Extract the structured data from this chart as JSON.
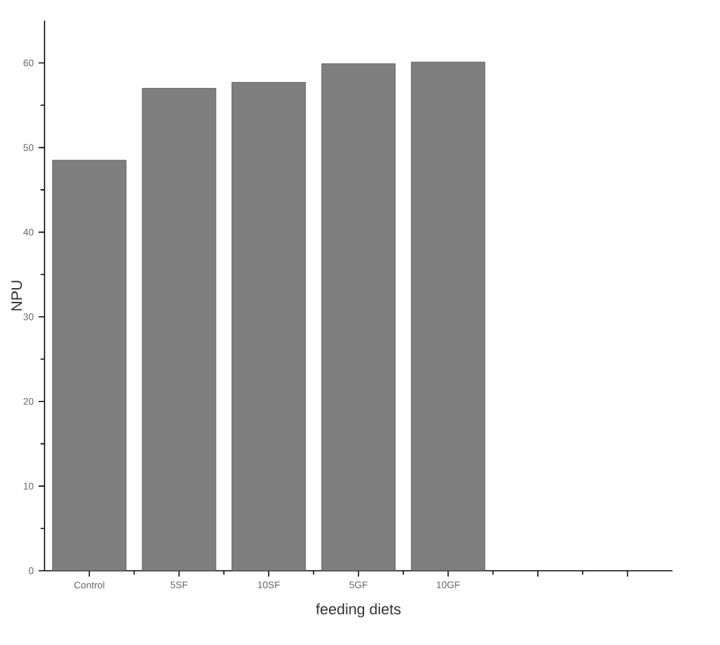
{
  "chart_data": {
    "type": "bar",
    "xlabel": "feeding diets",
    "ylabel": "NPU",
    "categories": [
      "Control",
      "5SF",
      "10SF",
      "5GF",
      "10GF",
      null,
      null
    ],
    "values": [
      48.5,
      57.0,
      57.7,
      59.9,
      60.1,
      null,
      null
    ],
    "color": "#7f7f7f",
    "ylim": [
      0,
      65
    ],
    "yticks": [
      0,
      10,
      20,
      30,
      40,
      50,
      60
    ]
  }
}
